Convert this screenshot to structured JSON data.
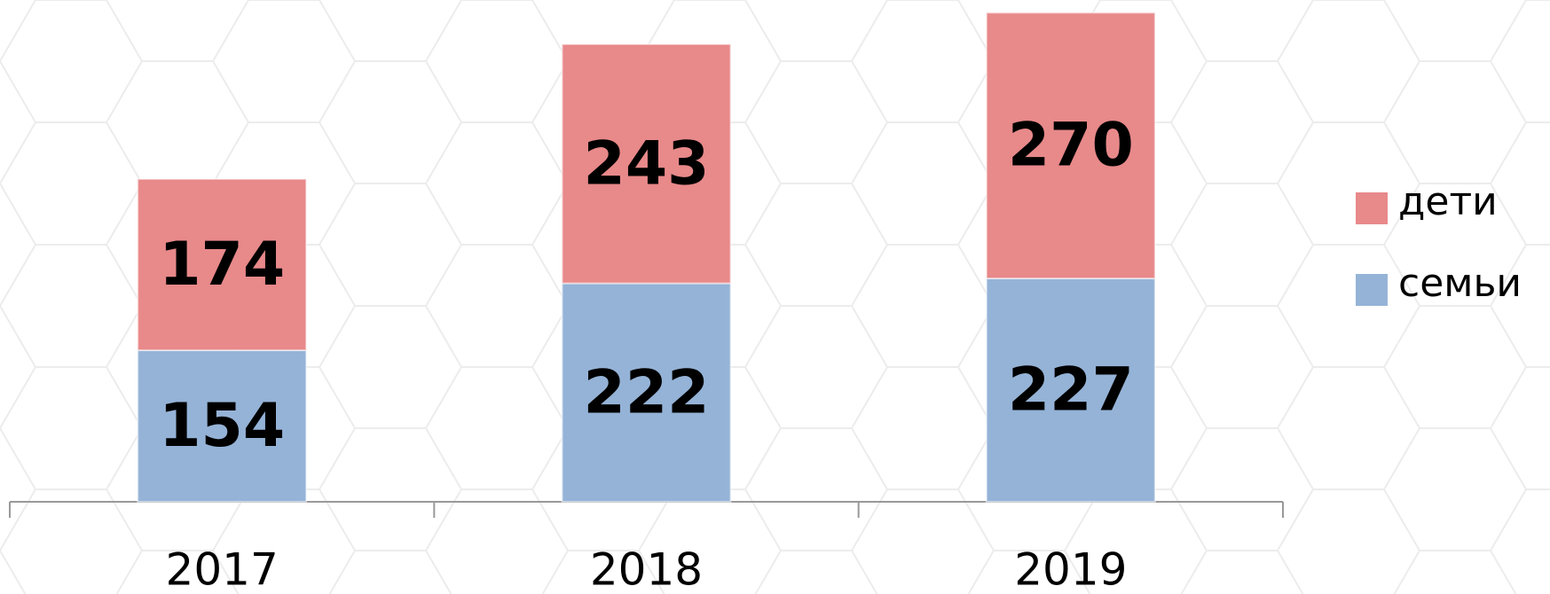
{
  "chart_data": {
    "type": "bar",
    "stacked": true,
    "categories": [
      "2017",
      "2018",
      "2019"
    ],
    "series": [
      {
        "name": "семьи",
        "color": "#95b3d7",
        "values": [
          154,
          222,
          227
        ]
      },
      {
        "name": "дети",
        "color": "#e8898a",
        "values": [
          174,
          243,
          270
        ]
      }
    ],
    "ylim": [
      0,
      500
    ],
    "legend": "right"
  }
}
